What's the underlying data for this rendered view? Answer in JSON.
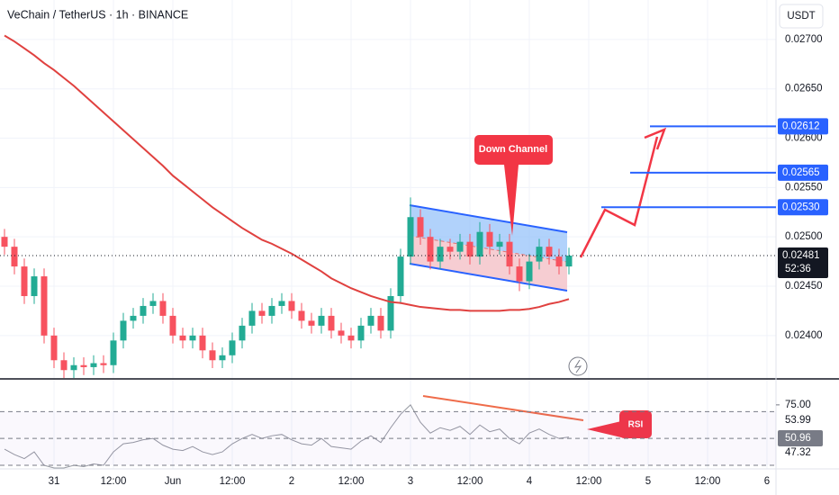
{
  "chart_data": {
    "type": "candlestick",
    "title": "VeChain / TetherUS · 1h · BINANCE",
    "currency": "USDT",
    "up_color": "#22ab94",
    "down_color": "#f7525f",
    "ma_color": "#e0413f",
    "open": [
      0.025,
      0.0249,
      0.0247,
      0.0244,
      0.0246,
      0.024,
      0.02375,
      0.02365,
      0.0237,
      0.02368,
      0.02372,
      0.0237,
      0.02395,
      0.02415,
      0.0242,
      0.0243,
      0.02435,
      0.0242,
      0.024,
      0.02395,
      0.024,
      0.02385,
      0.02375,
      0.0238,
      0.02395,
      0.0241,
      0.02425,
      0.0242,
      0.0243,
      0.02435,
      0.02425,
      0.02415,
      0.0241,
      0.0242,
      0.02405,
      0.024,
      0.02395,
      0.0241,
      0.0242,
      0.02405,
      0.0244,
      0.0248,
      0.0252,
      0.025,
      0.02475,
      0.0249,
      0.02485,
      0.02495,
      0.0248,
      0.02505,
      0.0249,
      0.02495,
      0.0247,
      0.02455,
      0.02475,
      0.0249,
      0.0248,
      0.0247
    ],
    "high": [
      0.02508,
      0.02498,
      0.02478,
      0.02468,
      0.02468,
      0.02408,
      0.02383,
      0.02378,
      0.02378,
      0.0238,
      0.0238,
      0.02403,
      0.02423,
      0.02428,
      0.02438,
      0.02443,
      0.02443,
      0.02428,
      0.02408,
      0.02408,
      0.02408,
      0.02393,
      0.02388,
      0.02403,
      0.02418,
      0.02433,
      0.02433,
      0.02438,
      0.02443,
      0.02443,
      0.02433,
      0.02423,
      0.02428,
      0.02428,
      0.02413,
      0.02408,
      0.02418,
      0.02428,
      0.02428,
      0.02448,
      0.02488,
      0.0254,
      0.02528,
      0.02508,
      0.02498,
      0.02498,
      0.02503,
      0.02503,
      0.02515,
      0.02513,
      0.02503,
      0.02503,
      0.02478,
      0.02483,
      0.02498,
      0.02498,
      0.02488,
      0.02489
    ],
    "low": [
      0.02482,
      0.02462,
      0.02432,
      0.02432,
      0.02392,
      0.02367,
      0.02357,
      0.02357,
      0.0236,
      0.0236,
      0.02362,
      0.02362,
      0.02387,
      0.02407,
      0.02412,
      0.02422,
      0.02412,
      0.02392,
      0.02387,
      0.02387,
      0.02377,
      0.02367,
      0.02367,
      0.02372,
      0.02387,
      0.02402,
      0.02412,
      0.02412,
      0.02422,
      0.02417,
      0.02407,
      0.02402,
      0.02402,
      0.02397,
      0.02392,
      0.02387,
      0.02387,
      0.02402,
      0.02397,
      0.02397,
      0.02432,
      0.02472,
      0.02492,
      0.02467,
      0.02467,
      0.02477,
      0.02477,
      0.02472,
      0.02472,
      0.02482,
      0.02482,
      0.02462,
      0.02445,
      0.02447,
      0.02467,
      0.02472,
      0.02462,
      0.02462
    ],
    "close": [
      0.0249,
      0.0247,
      0.0244,
      0.0246,
      0.024,
      0.02375,
      0.02365,
      0.0237,
      0.02368,
      0.02372,
      0.0237,
      0.02395,
      0.02415,
      0.0242,
      0.0243,
      0.02435,
      0.0242,
      0.024,
      0.02395,
      0.024,
      0.02385,
      0.02375,
      0.0238,
      0.02395,
      0.0241,
      0.02425,
      0.0242,
      0.0243,
      0.02435,
      0.02425,
      0.02415,
      0.0241,
      0.0242,
      0.02405,
      0.024,
      0.02395,
      0.0241,
      0.0242,
      0.02405,
      0.0244,
      0.0248,
      0.0252,
      0.025,
      0.02475,
      0.0249,
      0.02485,
      0.02495,
      0.0248,
      0.02505,
      0.0249,
      0.02495,
      0.0247,
      0.02455,
      0.02475,
      0.0249,
      0.0248,
      0.0247,
      0.02481
    ],
    "ma": [
      0.02704,
      0.02698,
      0.02691,
      0.02684,
      0.02676,
      0.02669,
      0.02661,
      0.02653,
      0.02644,
      0.02635,
      0.02626,
      0.02617,
      0.02608,
      0.02599,
      0.0259,
      0.02581,
      0.02572,
      0.02562,
      0.02554,
      0.02546,
      0.02538,
      0.0253,
      0.02523,
      0.02516,
      0.02509,
      0.02503,
      0.02497,
      0.02493,
      0.02488,
      0.02483,
      0.02477,
      0.02471,
      0.02465,
      0.02458,
      0.02453,
      0.02448,
      0.02444,
      0.0244,
      0.02437,
      0.02434,
      0.02433,
      0.02431,
      0.02429,
      0.02428,
      0.02427,
      0.02426,
      0.02426,
      0.02425,
      0.02425,
      0.02425,
      0.02425,
      0.02426,
      0.02426,
      0.02427,
      0.02429,
      0.02432,
      0.02434,
      0.02437
    ],
    "ylim": [
      0.02357,
      0.0274
    ],
    "yticks": [
      {
        "value": 0.027,
        "label": "0.02700"
      },
      {
        "value": 0.0265,
        "label": "0.02650"
      },
      {
        "value": 0.026,
        "label": "0.02600"
      },
      {
        "value": 0.0255,
        "label": "0.02550"
      },
      {
        "value": 0.025,
        "label": "0.02500"
      },
      {
        "value": 0.0245,
        "label": "0.02450"
      },
      {
        "value": 0.024,
        "label": "0.02400"
      }
    ],
    "targets": [
      {
        "value": 0.02612,
        "label": "0.02612"
      },
      {
        "value": 0.02565,
        "label": "0.02565"
      },
      {
        "value": 0.0253,
        "label": "0.02530"
      }
    ],
    "last_price": {
      "value": 0.02481,
      "label": "0.02481"
    },
    "countdown": "52:36",
    "x_labels": [
      "31",
      "12:00",
      "Jun",
      "12:00",
      "2",
      "12:00",
      "3",
      "12:00",
      "4",
      "12:00",
      "5",
      "12:00",
      "6"
    ],
    "annotations": [
      "Down Channel",
      "RSI"
    ],
    "rsi": [
      42,
      38,
      35,
      40,
      30,
      28,
      28,
      30,
      29,
      31,
      30,
      40,
      46,
      47,
      49,
      50,
      45,
      42,
      41,
      44,
      40,
      38,
      40,
      46,
      50,
      53,
      50,
      52,
      53,
      49,
      46,
      45,
      50,
      44,
      43,
      42,
      48,
      52,
      47,
      58,
      68,
      75,
      62,
      54,
      58,
      56,
      59,
      53,
      60,
      55,
      57,
      50,
      46,
      54,
      57,
      53,
      50,
      51
    ],
    "rsi_ylim": [
      28,
      93
    ],
    "rsi_levels": [
      70,
      50,
      30
    ],
    "rsi_yticks": [
      {
        "value": 75,
        "label": "75.00"
      }
    ],
    "rsi_badges": [
      53.99,
      50.96,
      47.32
    ]
  }
}
